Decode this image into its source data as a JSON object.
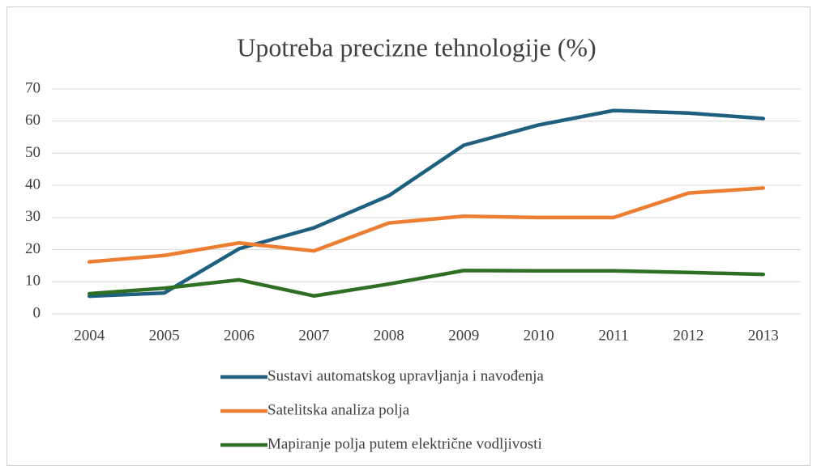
{
  "chart_data": {
    "type": "line",
    "title": "Upotreba precizne tehnologije (%)",
    "categories": [
      "2004",
      "2005",
      "2006",
      "2007",
      "2008",
      "2009",
      "2010",
      "2011",
      "2012",
      "2013"
    ],
    "series": [
      {
        "name": "Sustavi automatskog upravljanja i navođenja",
        "color": "#1f5f7f",
        "values": [
          5.5,
          6.5,
          20.3,
          26.8,
          36.8,
          52.5,
          58.8,
          63.3,
          62.5,
          60.8
        ]
      },
      {
        "name": "Satelitska analiza polja",
        "color": "#ed7d31",
        "values": [
          16.2,
          18.2,
          22.1,
          19.6,
          28.3,
          30.4,
          30.0,
          30.0,
          37.6,
          39.2
        ]
      },
      {
        "name": "Mapiranje polja putem električne vodljivosti",
        "color": "#2e6f24",
        "values": [
          6.3,
          8.0,
          10.6,
          5.6,
          9.3,
          13.5,
          13.4,
          13.4,
          12.9,
          12.3
        ]
      }
    ],
    "ylim": [
      0,
      70
    ],
    "yticks": [
      0,
      10,
      20,
      30,
      40,
      50,
      60,
      70
    ],
    "grid": true,
    "legend": "bottom"
  }
}
